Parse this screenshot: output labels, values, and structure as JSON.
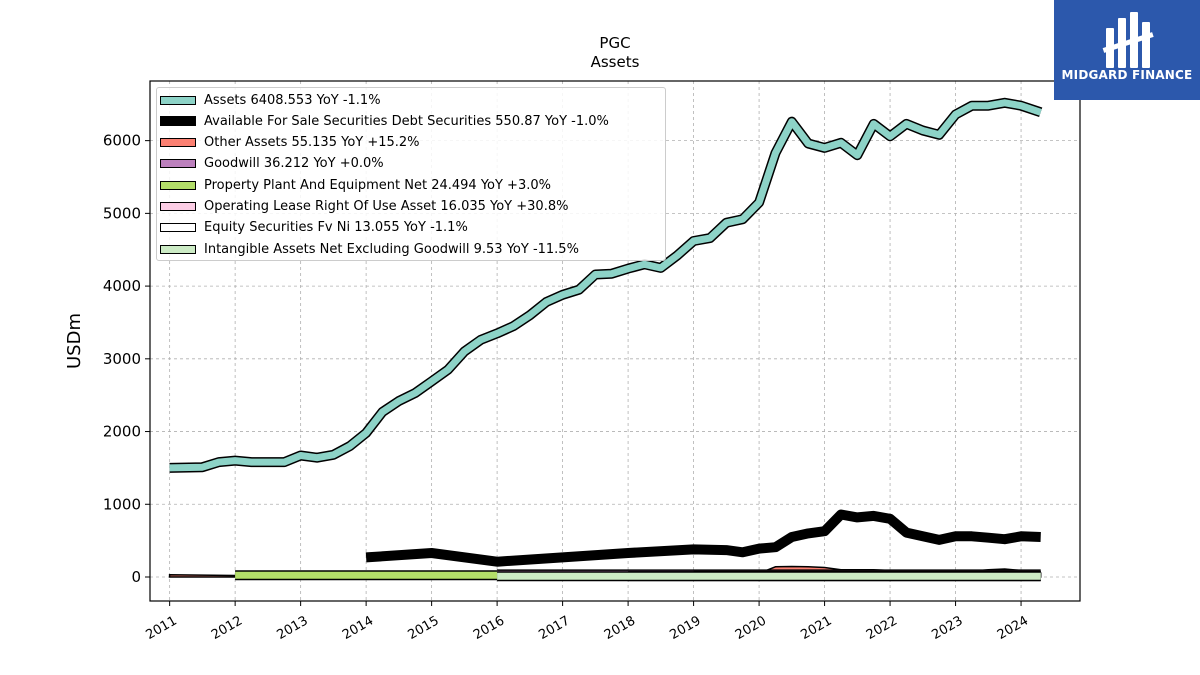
{
  "chart_data": {
    "type": "line",
    "title": "PGC",
    "subtitle": "Assets",
    "ylabel": "USDm",
    "xlabel": "",
    "xlim": [
      2010.7,
      2024.9
    ],
    "ylim": [
      -330,
      6820
    ],
    "yticks": [
      0,
      1000,
      2000,
      3000,
      4000,
      5000,
      6000
    ],
    "xticks": [
      2011,
      2012,
      2013,
      2014,
      2015,
      2016,
      2017,
      2018,
      2019,
      2020,
      2021,
      2022,
      2023,
      2024
    ],
    "grid": true,
    "legend_position": "upper-left",
    "series": [
      {
        "name": "Assets",
        "legend": "Assets  6408.553 YoY -1.1%",
        "color": "#8dd3c7",
        "x": [
          2011.0,
          2011.5,
          2011.75,
          2012.0,
          2012.25,
          2012.75,
          2013.0,
          2013.25,
          2013.5,
          2013.75,
          2014.0,
          2014.25,
          2014.5,
          2014.75,
          2015.0,
          2015.25,
          2015.5,
          2015.75,
          2016.0,
          2016.25,
          2016.5,
          2016.75,
          2017.0,
          2017.25,
          2017.5,
          2017.75,
          2018.0,
          2018.25,
          2018.5,
          2018.75,
          2019.0,
          2019.25,
          2019.5,
          2019.75,
          2020.0,
          2020.25,
          2020.5,
          2020.75,
          2021.0,
          2021.25,
          2021.5,
          2021.75,
          2022.0,
          2022.25,
          2022.5,
          2022.75,
          2023.0,
          2023.25,
          2023.5,
          2023.75,
          2024.0,
          2024.3
        ],
        "y": [
          1500,
          1510,
          1580,
          1600,
          1580,
          1580,
          1670,
          1640,
          1680,
          1800,
          1980,
          2270,
          2420,
          2530,
          2690,
          2850,
          3100,
          3260,
          3350,
          3450,
          3600,
          3780,
          3880,
          3950,
          4160,
          4170,
          4240,
          4300,
          4250,
          4420,
          4620,
          4660,
          4870,
          4920,
          5150,
          5830,
          6260,
          5960,
          5900,
          5970,
          5800,
          6230,
          6060,
          6230,
          6140,
          6080,
          6360,
          6480,
          6480,
          6520,
          6480,
          6390
        ]
      },
      {
        "name": "Available For Sale Securities Debt Securities",
        "legend": "Available For Sale Securities Debt Securities  550.87 YoY -1.0%",
        "color": "#000000",
        "x": [
          2014.0,
          2015.0,
          2016.0,
          2017.0,
          2018.0,
          2019.0,
          2019.5,
          2019.75,
          2020.0,
          2020.25,
          2020.5,
          2020.75,
          2021.0,
          2021.25,
          2021.5,
          2021.75,
          2022.0,
          2022.25,
          2022.5,
          2022.75,
          2023.0,
          2023.25,
          2023.5,
          2023.75,
          2024.0,
          2024.3
        ],
        "y": [
          270,
          330,
          210,
          270,
          330,
          380,
          370,
          340,
          390,
          410,
          550,
          600,
          630,
          860,
          820,
          840,
          800,
          610,
          560,
          510,
          560,
          560,
          540,
          520,
          560,
          550
        ]
      },
      {
        "name": "Other Assets",
        "legend": "Other Assets  55.135 YoY +15.2%",
        "color": "#fb8072",
        "x": [
          2011.0,
          2012.0,
          2013.0,
          2014.0,
          2015.0,
          2016.0,
          2017.0,
          2018.0,
          2019.0,
          2019.5,
          2019.75,
          2020.0,
          2020.25,
          2020.5,
          2020.75,
          2021.0,
          2021.25,
          2021.5,
          2021.75,
          2022.0,
          2022.25,
          2022.5,
          2022.75,
          2023.0,
          2023.25,
          2023.5,
          2023.75,
          2024.0,
          2024.3
        ],
        "y": [
          30,
          20,
          25,
          20,
          -20,
          -30,
          -30,
          20,
          20,
          30,
          40,
          50,
          140,
          145,
          140,
          130,
          100,
          100,
          100,
          90,
          60,
          60,
          90,
          90,
          80,
          100,
          110,
          90,
          55
        ]
      },
      {
        "name": "Goodwill",
        "legend": "Goodwill  36.212 YoY +0.0%",
        "color": "#bc80bd",
        "x": [
          2016.0,
          2024.3
        ],
        "y": [
          36.212,
          36.212
        ]
      },
      {
        "name": "Property Plant And Equipment Net",
        "legend": "Property Plant And Equipment Net  24.494 YoY +3.0%",
        "color": "#b3de69",
        "x": [
          2012.0,
          2016.0
        ],
        "y": [
          24.494,
          24.494
        ]
      },
      {
        "name": "Operating Lease Right Of Use Asset",
        "legend": "Operating Lease Right Of Use Asset  16.035 YoY +30.8%",
        "color": "#fccde5",
        "x": [
          2019.0,
          2024.3
        ],
        "y": [
          16,
          16
        ]
      },
      {
        "name": "Equity Securities Fv Ni",
        "legend": "Equity Securities Fv Ni  13.055 YoY -1.1%",
        "color": "#ffffff",
        "x": [
          2018.0,
          2024.3
        ],
        "y": [
          13,
          13
        ]
      },
      {
        "name": "Intangible Assets Net Excluding Goodwill",
        "legend": "Intangible Assets Net Excluding Goodwill  9.53 YoY -11.5%",
        "color": "#ccebc5",
        "x": [
          2016.0,
          2024.3
        ],
        "y": [
          9.53,
          9.53
        ]
      }
    ]
  },
  "logo": {
    "text": "MIDGARD FINANCE",
    "color": "#2c58ac"
  }
}
